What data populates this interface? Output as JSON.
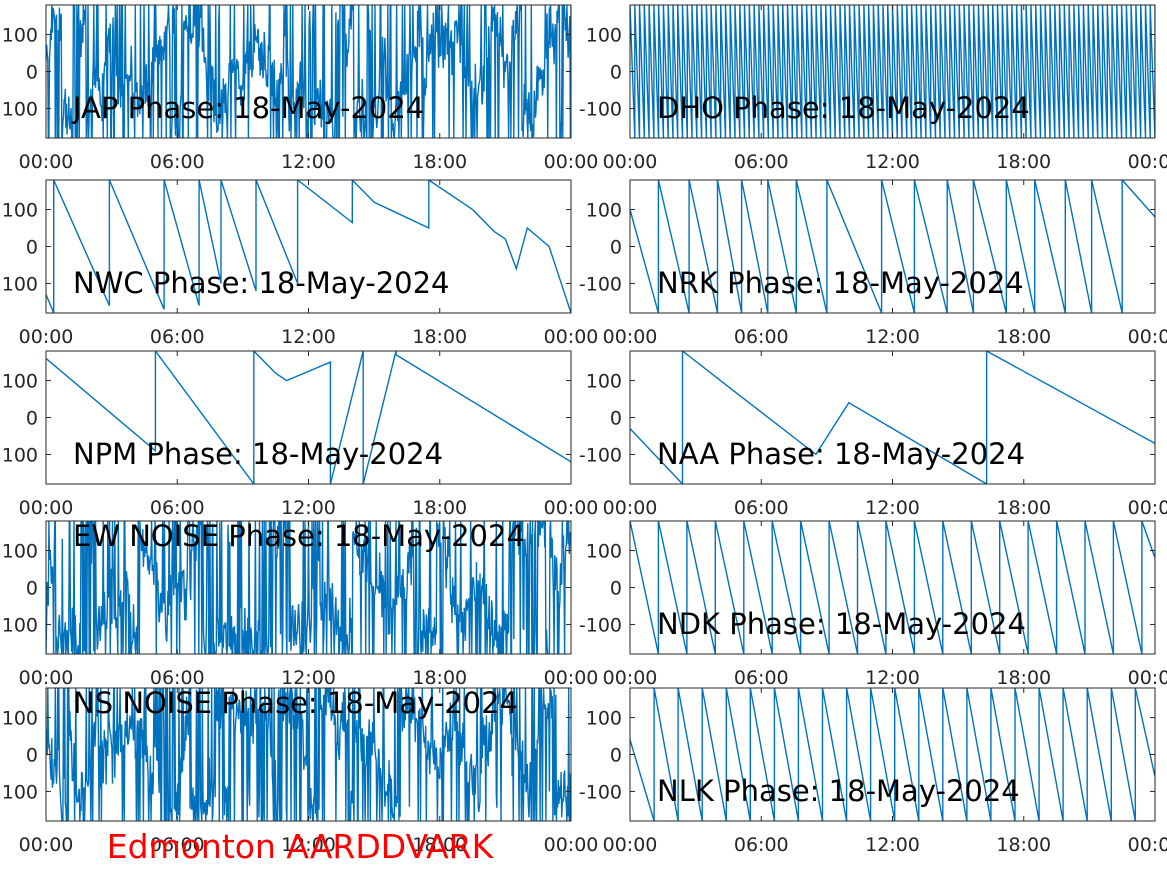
{
  "footer": {
    "text": "Edmonton AARDDVARK",
    "color": "#ff0000"
  },
  "line_color": "#0072bd",
  "chart_data": [
    {
      "type": "line",
      "title": "JAP Phase: 18-May-2024",
      "x_ticks": [
        "00:00",
        "06:00",
        "12:00",
        "18:00",
        "00:00"
      ],
      "y_ticks": [
        "100",
        "0",
        "100"
      ],
      "xlim": [
        0,
        24
      ],
      "ylim": [
        -180,
        180
      ],
      "pattern": "noise",
      "series": [
        {
          "x": [
            0,
            24
          ],
          "y": [
            0,
            0
          ]
        }
      ]
    },
    {
      "type": "line",
      "title": "DHO Phase: 18-May-2024",
      "x_ticks": [
        "00:00",
        "06:00",
        "12:00",
        "18:00",
        "00:00"
      ],
      "y_ticks": [
        "100",
        "0",
        "-100"
      ],
      "xlim": [
        0,
        24
      ],
      "ylim": [
        -180,
        180
      ],
      "pattern": "fastwrap",
      "series": [
        {
          "x": [
            0,
            24
          ],
          "y": [
            0,
            0
          ]
        }
      ]
    },
    {
      "type": "line",
      "title": "NWC Phase: 18-May-2024",
      "x_ticks": [
        "00:00",
        "06:00",
        "12:00",
        "18:00",
        "00:00"
      ],
      "y_ticks": [
        "100",
        "0",
        "100"
      ],
      "xlim": [
        0,
        24
      ],
      "ylim": [
        -180,
        180
      ],
      "pattern": "wrap",
      "series": [
        {
          "x": [
            0,
            0.35,
            0.35,
            2.9,
            2.9,
            5.4,
            5.4,
            7.0,
            7.0,
            8.0,
            8.0,
            9.6,
            9.6,
            11.5,
            11.5,
            14.0,
            14.0,
            15.0,
            17.5,
            17.5,
            19.5,
            20.5,
            21.0,
            21.5,
            22.0,
            23.0,
            24.0
          ],
          "y": [
            -130,
            -180,
            180,
            -160,
            180,
            -170,
            180,
            -160,
            180,
            -100,
            180,
            -120,
            180,
            -100,
            180,
            65,
            180,
            120,
            50,
            180,
            100,
            40,
            20,
            -60,
            50,
            0,
            -180
          ]
        }
      ]
    },
    {
      "type": "line",
      "title": "NRK Phase: 18-May-2024",
      "x_ticks": [
        "00:00",
        "06:00",
        "12:00",
        "18:00",
        "00:00"
      ],
      "y_ticks": [
        "100",
        "0",
        "-100"
      ],
      "xlim": [
        0,
        24
      ],
      "ylim": [
        -180,
        180
      ],
      "pattern": "wrap",
      "series": [
        {
          "x": [
            0,
            1.3,
            1.3,
            2.7,
            2.7,
            4.0,
            4.0,
            5.1,
            5.1,
            6.3,
            6.3,
            7.6,
            7.6,
            9.0,
            9.0,
            11.5,
            11.5,
            13.0,
            13.0,
            14.5,
            14.5,
            15.7,
            15.7,
            17.2,
            17.2,
            18.5,
            18.5,
            19.9,
            19.9,
            21.1,
            21.1,
            22.5,
            22.5,
            24.0
          ],
          "y": [
            100,
            -180,
            180,
            -180,
            180,
            -180,
            180,
            -180,
            180,
            -180,
            180,
            -180,
            180,
            -180,
            180,
            -180,
            180,
            -180,
            180,
            -180,
            180,
            -180,
            180,
            -180,
            180,
            -180,
            180,
            -180,
            180,
            -180,
            180,
            -180,
            180,
            80
          ]
        }
      ]
    },
    {
      "type": "line",
      "title": "NPM Phase: 18-May-2024",
      "x_ticks": [
        "00:00",
        "06:00",
        "12:00",
        "18:00",
        "00:00"
      ],
      "y_ticks": [
        "100",
        "0",
        "100"
      ],
      "xlim": [
        0,
        24
      ],
      "ylim": [
        -180,
        180
      ],
      "pattern": "wrap",
      "series": [
        {
          "x": [
            0,
            5.0,
            5.0,
            9.5,
            9.5,
            10.5,
            11.0,
            13.0,
            13.0,
            14.5,
            14.5,
            16.0,
            16.0,
            24.0
          ],
          "y": [
            160,
            -90,
            180,
            -180,
            180,
            120,
            100,
            150,
            -180,
            180,
            -180,
            180,
            170,
            -120
          ]
        }
      ]
    },
    {
      "type": "line",
      "title": "NAA Phase: 18-May-2024",
      "x_ticks": [
        "00:00",
        "06:00",
        "12:00",
        "18:00",
        "00:00"
      ],
      "y_ticks": [
        "100",
        "0",
        "-100"
      ],
      "xlim": [
        0,
        24
      ],
      "ylim": [
        -180,
        180
      ],
      "pattern": "wrap",
      "series": [
        {
          "x": [
            0,
            2.4,
            2.4,
            5.0,
            8.5,
            10.0,
            16.3,
            16.3,
            24.0
          ],
          "y": [
            -30,
            -180,
            180,
            60,
            -100,
            40,
            -180,
            180,
            -70
          ]
        }
      ]
    },
    {
      "type": "line",
      "title": "EW NOISE Phase: 18-May-2024",
      "x_ticks": [
        "00:00",
        "06:00",
        "12:00",
        "18:00",
        "00:00"
      ],
      "y_ticks": [
        "100",
        "0",
        "100"
      ],
      "xlim": [
        0,
        24
      ],
      "ylim": [
        -180,
        180
      ],
      "pattern": "noise",
      "series": [
        {
          "x": [
            0,
            24
          ],
          "y": [
            0,
            0
          ]
        }
      ]
    },
    {
      "type": "line",
      "title": "NDK Phase: 18-May-2024",
      "x_ticks": [
        "00:00",
        "06:00",
        "12:00",
        "18:00",
        "00:00"
      ],
      "y_ticks": [
        "100",
        "0",
        "-100"
      ],
      "xlim": [
        0,
        24
      ],
      "ylim": [
        -180,
        180
      ],
      "pattern": "wrap",
      "series": [
        {
          "x": [
            0,
            1.3,
            1.3,
            2.6,
            2.6,
            3.9,
            3.9,
            5.2,
            5.2,
            6.5,
            6.5,
            7.8,
            7.8,
            9.1,
            9.1,
            10.4,
            10.4,
            11.7,
            11.7,
            13.0,
            13.0,
            14.3,
            14.3,
            15.6,
            15.6,
            16.9,
            16.9,
            18.2,
            18.2,
            19.5,
            19.5,
            20.8,
            20.8,
            22.1,
            22.1,
            23.4,
            23.4,
            24.0
          ],
          "y": [
            180,
            -180,
            180,
            -180,
            180,
            -180,
            180,
            -180,
            180,
            -180,
            180,
            -180,
            180,
            -180,
            180,
            -180,
            180,
            -180,
            180,
            -180,
            180,
            -180,
            180,
            -180,
            180,
            -180,
            180,
            -180,
            180,
            -180,
            180,
            -180,
            180,
            -180,
            180,
            -180,
            180,
            80
          ]
        }
      ]
    },
    {
      "type": "line",
      "title": "NS NOISE Phase: 18-May-2024",
      "x_ticks": [
        "00:00",
        "06:00",
        "12:00",
        "18:00",
        "00:00"
      ],
      "y_ticks": [
        "100",
        "0",
        "100"
      ],
      "xlim": [
        0,
        24
      ],
      "ylim": [
        -180,
        180
      ],
      "pattern": "noise",
      "series": [
        {
          "x": [
            0,
            24
          ],
          "y": [
            0,
            0
          ]
        }
      ]
    },
    {
      "type": "line",
      "title": "NLK Phase: 18-May-2024",
      "x_ticks": [
        "00:00",
        "06:00",
        "12:00",
        "18:00",
        "00:00"
      ],
      "y_ticks": [
        "100",
        "0",
        "-100"
      ],
      "xlim": [
        0,
        24
      ],
      "ylim": [
        -180,
        180
      ],
      "pattern": "wrap",
      "series": [
        {
          "x": [
            0,
            1.1,
            1.1,
            2.2,
            2.2,
            3.3,
            3.3,
            4.4,
            4.4,
            5.5,
            5.5,
            6.6,
            6.6,
            7.7,
            7.7,
            8.8,
            8.8,
            9.9,
            9.9,
            11.0,
            11.0,
            12.1,
            12.1,
            13.2,
            13.2,
            14.3,
            14.3,
            15.4,
            15.4,
            16.5,
            16.5,
            17.6,
            17.6,
            18.7,
            18.7,
            19.8,
            19.8,
            20.9,
            20.9,
            22.0,
            22.0,
            23.1,
            23.1,
            24.0
          ],
          "y": [
            40,
            -180,
            180,
            -180,
            180,
            -180,
            180,
            -180,
            180,
            -180,
            180,
            -180,
            180,
            -180,
            180,
            -180,
            180,
            -180,
            180,
            -180,
            180,
            -180,
            180,
            -180,
            180,
            -180,
            180,
            -180,
            180,
            -180,
            180,
            -180,
            180,
            -180,
            180,
            -180,
            180,
            -180,
            180,
            -180,
            180,
            -180,
            180,
            -60
          ]
        }
      ]
    }
  ]
}
